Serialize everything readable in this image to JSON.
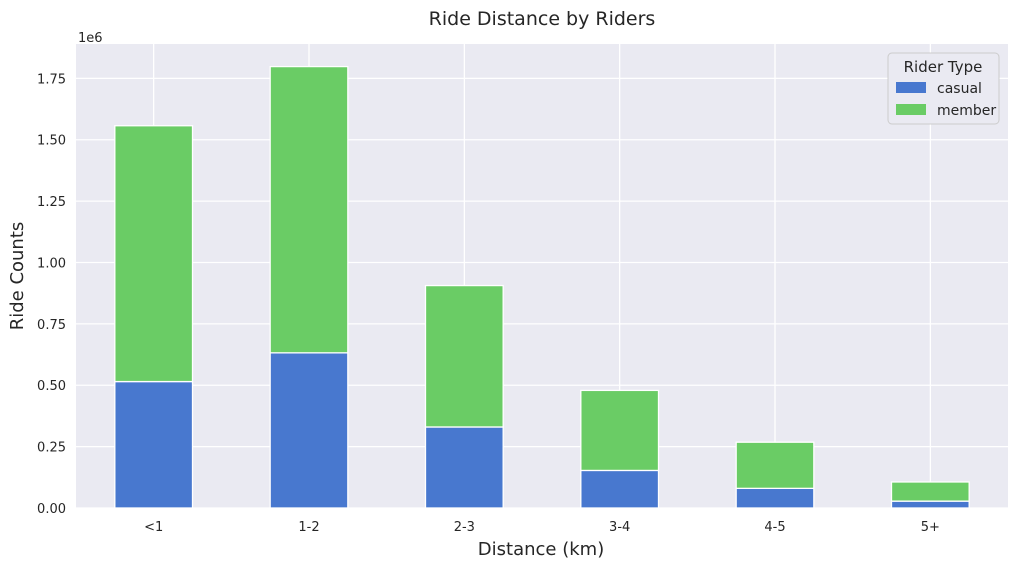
{
  "chart_data": {
    "type": "bar",
    "stacked": true,
    "title": "Ride Distance by Riders",
    "xlabel": "Distance (km)",
    "ylabel": "Ride Counts",
    "y_multiplier_label": "1e6",
    "ylim": [
      0,
      1890000
    ],
    "y_ticks": [
      0,
      250000,
      500000,
      750000,
      1000000,
      1250000,
      1500000,
      1750000
    ],
    "y_tick_labels": [
      "0.00",
      "0.25",
      "0.50",
      "0.75",
      "1.00",
      "1.25",
      "1.50",
      "1.75"
    ],
    "grid": true,
    "legend_position": "top-right",
    "legend_title": "Rider Type",
    "categories": [
      "<1",
      "1-2",
      "2-3",
      "3-4",
      "4-5",
      "5+"
    ],
    "series": [
      {
        "name": "casual",
        "color": "#4878CF",
        "values": [
          515000,
          632000,
          330000,
          153000,
          80000,
          28000
        ]
      },
      {
        "name": "member",
        "color": "#6ACC65",
        "values": [
          1042000,
          1166000,
          576000,
          326000,
          188000,
          78000
        ]
      }
    ]
  }
}
